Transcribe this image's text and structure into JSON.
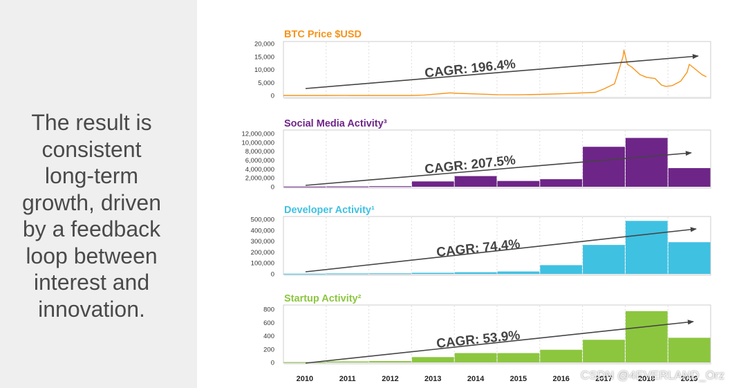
{
  "left_text": "The result is\nconsistent\nlong-term\ngrowth, driven\nby a feedback\nloop between\ninterest and\ninnovation.",
  "watermark": "CSDN @4EVERLAND_Orz",
  "colors": {
    "left_bg": "#efefef",
    "text": "#4a4a4a",
    "arrow": "#444444",
    "btc": "#f7931a",
    "social": "#6e2588",
    "developer": "#3fc1e2",
    "startup": "#8cc63f",
    "grid": "#dddddd",
    "frame": "#cccccc"
  },
  "chart_data": [
    {
      "type": "line",
      "title": "BTC Price $USD",
      "color": "#f7931a",
      "ylim": [
        0,
        20000
      ],
      "yticks": [
        0,
        5000,
        10000,
        15000,
        20000
      ],
      "ytick_labels": [
        "0",
        "5,000",
        "10,000",
        "15,000",
        "20,000"
      ],
      "x": [
        2010,
        2011,
        2011.45,
        2011.6,
        2012,
        2012.5,
        2013,
        2013.3,
        2013.9,
        2014.1,
        2014.5,
        2015,
        2015.5,
        2016,
        2016.5,
        2017,
        2017.3,
        2017.5,
        2017.75,
        2017.95,
        2017.97,
        2018.05,
        2018.15,
        2018.35,
        2018.5,
        2018.7,
        2018.85,
        2018.95,
        2019.1,
        2019.3,
        2019.45,
        2019.5,
        2019.65,
        2019.8,
        2019.9
      ],
      "values": [
        0,
        1,
        30,
        8,
        5,
        10,
        13,
        150,
        1000,
        800,
        600,
        300,
        250,
        400,
        650,
        1000,
        1200,
        2500,
        4500,
        15000,
        17500,
        12000,
        11000,
        8000,
        7000,
        6500,
        4000,
        3500,
        3800,
        5500,
        9000,
        12000,
        10000,
        8000,
        7200
      ],
      "trend_label": "CAGR: 196.4%"
    },
    {
      "type": "bar",
      "title": "Social Media Activity³",
      "color": "#6e2588",
      "categories": [
        "2010",
        "2011",
        "2012",
        "2013",
        "2014",
        "2015",
        "2016",
        "2017",
        "2018",
        "2019"
      ],
      "values": [
        30000,
        60000,
        120000,
        1200000,
        2400000,
        1300000,
        1700000,
        9000000,
        11000000,
        4200000
      ],
      "ylim": [
        0,
        12000000
      ],
      "yticks": [
        0,
        2000000,
        4000000,
        6000000,
        8000000,
        10000000,
        12000000
      ],
      "ytick_labels": [
        "0",
        "2,000,000",
        "4,000,000",
        "6,000,000",
        "8,000,000",
        "10,000,000",
        "12,000,000"
      ],
      "trend_label": "CAGR: 207.5%"
    },
    {
      "type": "bar",
      "title": "Developer Activity¹",
      "color": "#3fc1e2",
      "categories": [
        "2010",
        "2011",
        "2012",
        "2013",
        "2014",
        "2015",
        "2016",
        "2017",
        "2018",
        "2019"
      ],
      "values": [
        1500,
        4000,
        5000,
        10000,
        15000,
        22000,
        80000,
        265000,
        485000,
        290000
      ],
      "ylim": [
        0,
        500000
      ],
      "yticks": [
        0,
        100000,
        200000,
        300000,
        400000,
        500000
      ],
      "ytick_labels": [
        "0",
        "100,000",
        "200,000",
        "300,000",
        "400,000",
        "500,000"
      ],
      "trend_label": "CAGR: 74.4%"
    },
    {
      "type": "bar",
      "title": "Startup Activity²",
      "color": "#8cc63f",
      "categories": [
        "2010",
        "2011",
        "2012",
        "2013",
        "2014",
        "2015",
        "2016",
        "2017",
        "2018",
        "2019"
      ],
      "values": [
        5,
        15,
        20,
        80,
        140,
        140,
        190,
        340,
        770,
        370
      ],
      "ylim": [
        0,
        800
      ],
      "yticks": [
        0,
        200,
        400,
        600,
        800
      ],
      "ytick_labels": [
        "0",
        "200",
        "400",
        "600",
        "800"
      ],
      "trend_label": "CAGR: 53.9%"
    }
  ],
  "x_axis": {
    "categories": [
      "2010",
      "2011",
      "2012",
      "2013",
      "2014",
      "2015",
      "2016",
      "2017",
      "2018",
      "2019"
    ]
  }
}
